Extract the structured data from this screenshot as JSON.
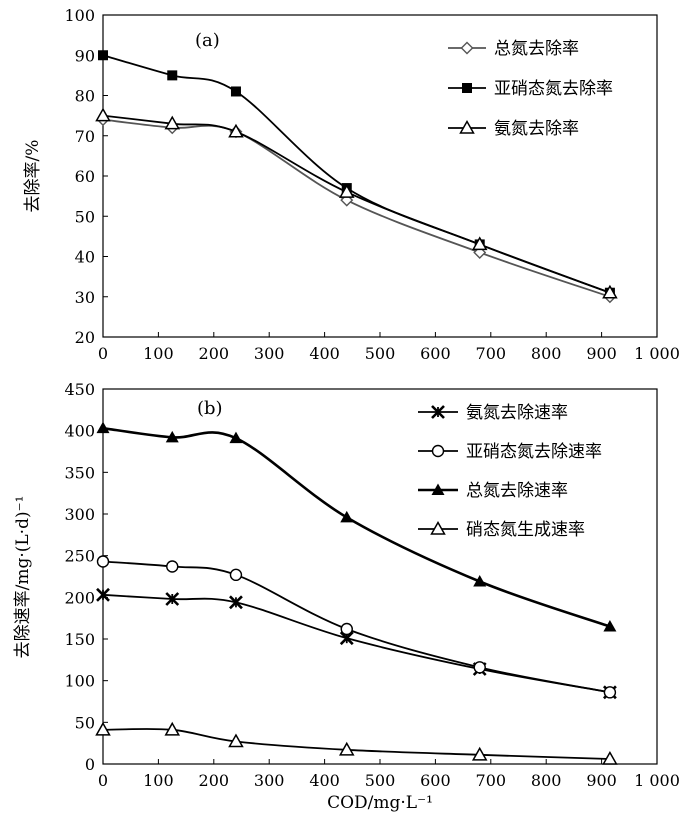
{
  "chart_data": [
    {
      "type": "line",
      "panel_label": "(a)",
      "xlabel": "",
      "ylabel": "去除率/%",
      "xlim": [
        0,
        1000
      ],
      "ylim": [
        20,
        100
      ],
      "x_ticks": [
        0,
        100,
        200,
        300,
        400,
        500,
        600,
        700,
        800,
        900,
        1000
      ],
      "x_tick_labels": [
        "0",
        "100",
        "200",
        "300",
        "400",
        "500",
        "600",
        "700",
        "800",
        "900",
        "1 000"
      ],
      "y_ticks": [
        20,
        30,
        40,
        50,
        60,
        70,
        80,
        90,
        100
      ],
      "grid": false,
      "legend_position": "top-right",
      "x": [
        0,
        125,
        240,
        440,
        680,
        915
      ],
      "series": [
        {
          "name": "总氮去除率",
          "marker": "diamond-open",
          "color": "#555555",
          "values": [
            74,
            72,
            71,
            54,
            41,
            30
          ]
        },
        {
          "name": "亚硝态氮去除率",
          "marker": "square-filled",
          "color": "#000000",
          "values": [
            90,
            85,
            81,
            57,
            43,
            31
          ]
        },
        {
          "name": "氨氮去除率",
          "marker": "triangle-open",
          "color": "#000000",
          "values": [
            75,
            73,
            71,
            56,
            43,
            31
          ]
        }
      ]
    },
    {
      "type": "line",
      "panel_label": "(b)",
      "xlabel": "COD/mg·L⁻¹",
      "ylabel": "去除速率/mg·(L·d)⁻¹",
      "xlim": [
        0,
        1000
      ],
      "ylim": [
        0,
        450
      ],
      "x_ticks": [
        0,
        100,
        200,
        300,
        400,
        500,
        600,
        700,
        800,
        900,
        1000
      ],
      "x_tick_labels": [
        "0",
        "100",
        "200",
        "300",
        "400",
        "500",
        "600",
        "700",
        "800",
        "900",
        "1 000"
      ],
      "y_ticks": [
        0,
        50,
        100,
        150,
        200,
        250,
        300,
        350,
        400,
        450
      ],
      "grid": false,
      "legend_position": "top-right",
      "x": [
        0,
        125,
        240,
        440,
        680,
        915
      ],
      "series": [
        {
          "name": "氨氮去除速率",
          "marker": "asterisk",
          "color": "#000000",
          "values": [
            203,
            198,
            194,
            151,
            114,
            86
          ]
        },
        {
          "name": "亚硝态氮去除速率",
          "marker": "circle-open",
          "color": "#000000",
          "values": [
            243,
            237,
            227,
            162,
            116,
            86
          ]
        },
        {
          "name": "总氮去除速率",
          "marker": "triangle-filled",
          "color": "#000000",
          "values": [
            403,
            392,
            391,
            296,
            219,
            165
          ]
        },
        {
          "name": "硝态氮生成速率",
          "marker": "triangle-open",
          "color": "#000000",
          "values": [
            41,
            41,
            27,
            17,
            11,
            6
          ]
        }
      ]
    }
  ]
}
